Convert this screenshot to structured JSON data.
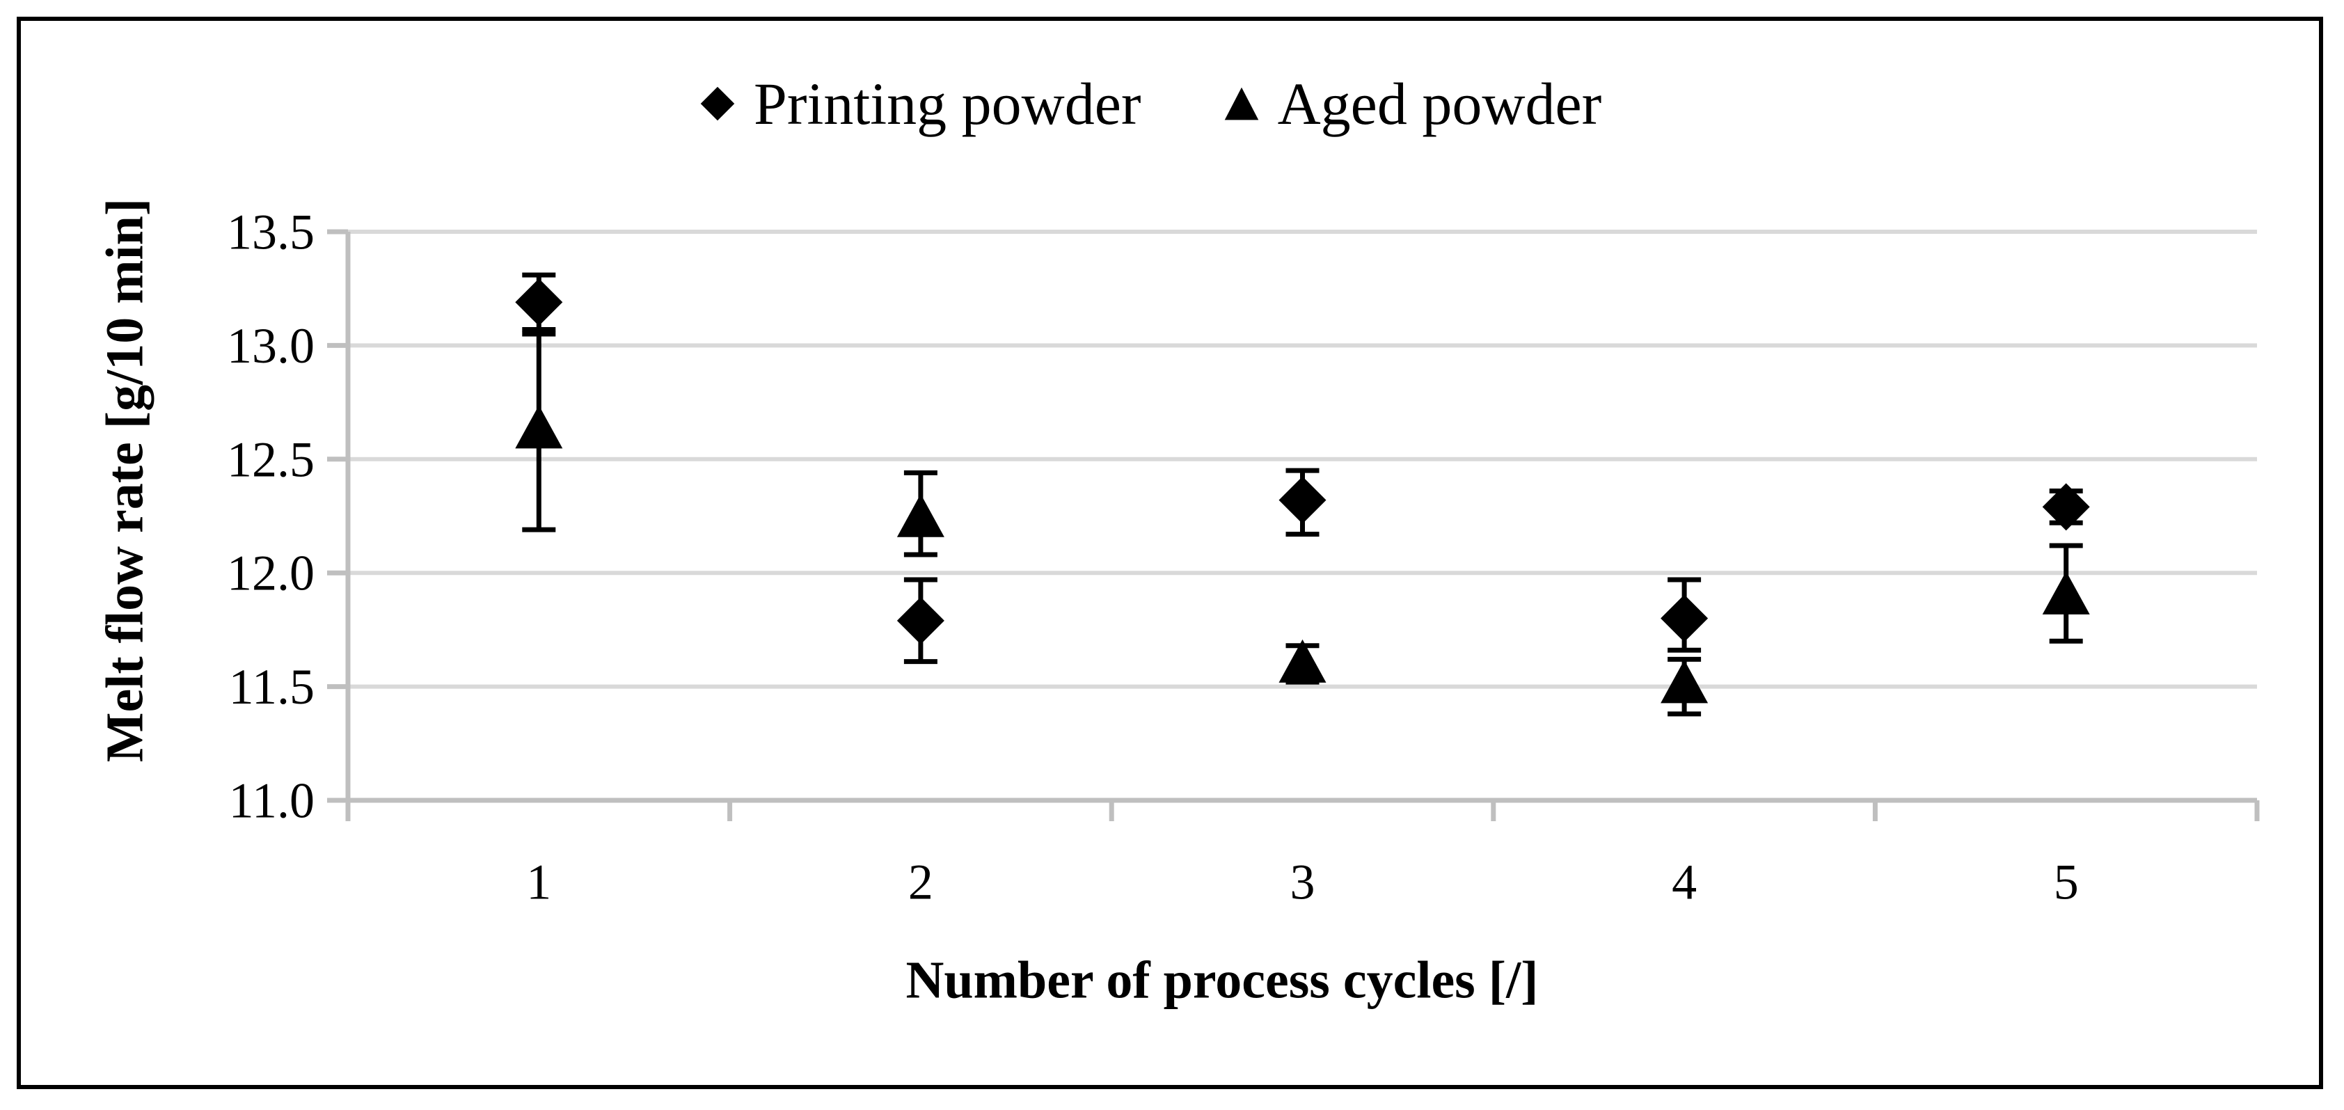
{
  "legend": [
    {
      "label": "Printing powder",
      "marker": "diamond"
    },
    {
      "label": "Aged powder",
      "marker": "triangle"
    }
  ],
  "y_axis": {
    "title": "Melt flow rate [g/10 min]",
    "tick_labels": [
      "13.5",
      "13.0",
      "12.5",
      "12.0",
      "11.5",
      "11.0"
    ]
  },
  "x_axis": {
    "title": "Number of process cycles [/]",
    "tick_labels": [
      "1",
      "2",
      "3",
      "4",
      "5"
    ]
  },
  "chart_data": {
    "type": "scatter",
    "title": "",
    "categories": [
      1,
      2,
      3,
      4,
      5
    ],
    "series": [
      {
        "name": "Printing powder",
        "marker": "diamond",
        "values": [
          13.19,
          11.79,
          12.32,
          11.8,
          12.29
        ],
        "error_plus": [
          0.12,
          0.18,
          0.13,
          0.17,
          0.07
        ],
        "error_minus": [
          0.12,
          0.18,
          0.15,
          0.14,
          0.07
        ]
      },
      {
        "name": "Aged powder",
        "marker": "triangle",
        "values": [
          12.63,
          12.24,
          11.6,
          11.51,
          11.9
        ],
        "error_plus": [
          0.42,
          0.2,
          0.08,
          0.11,
          0.22
        ],
        "error_minus": [
          0.44,
          0.16,
          0.08,
          0.13,
          0.2
        ]
      }
    ],
    "xlabel": "Number of process cycles [/]",
    "ylabel": "Melt flow rate [g/10 min]",
    "ylim": [
      11.0,
      13.5
    ],
    "y_step": 0.5,
    "grid": "horizontal",
    "legend_position": "top",
    "colors": {
      "marker": "#000000",
      "error_bar": "#000000",
      "gridline": "#d9d9d9",
      "axis": "#bfbfbf",
      "text": "#000000",
      "border": "#000000",
      "background": "#ffffff"
    }
  }
}
